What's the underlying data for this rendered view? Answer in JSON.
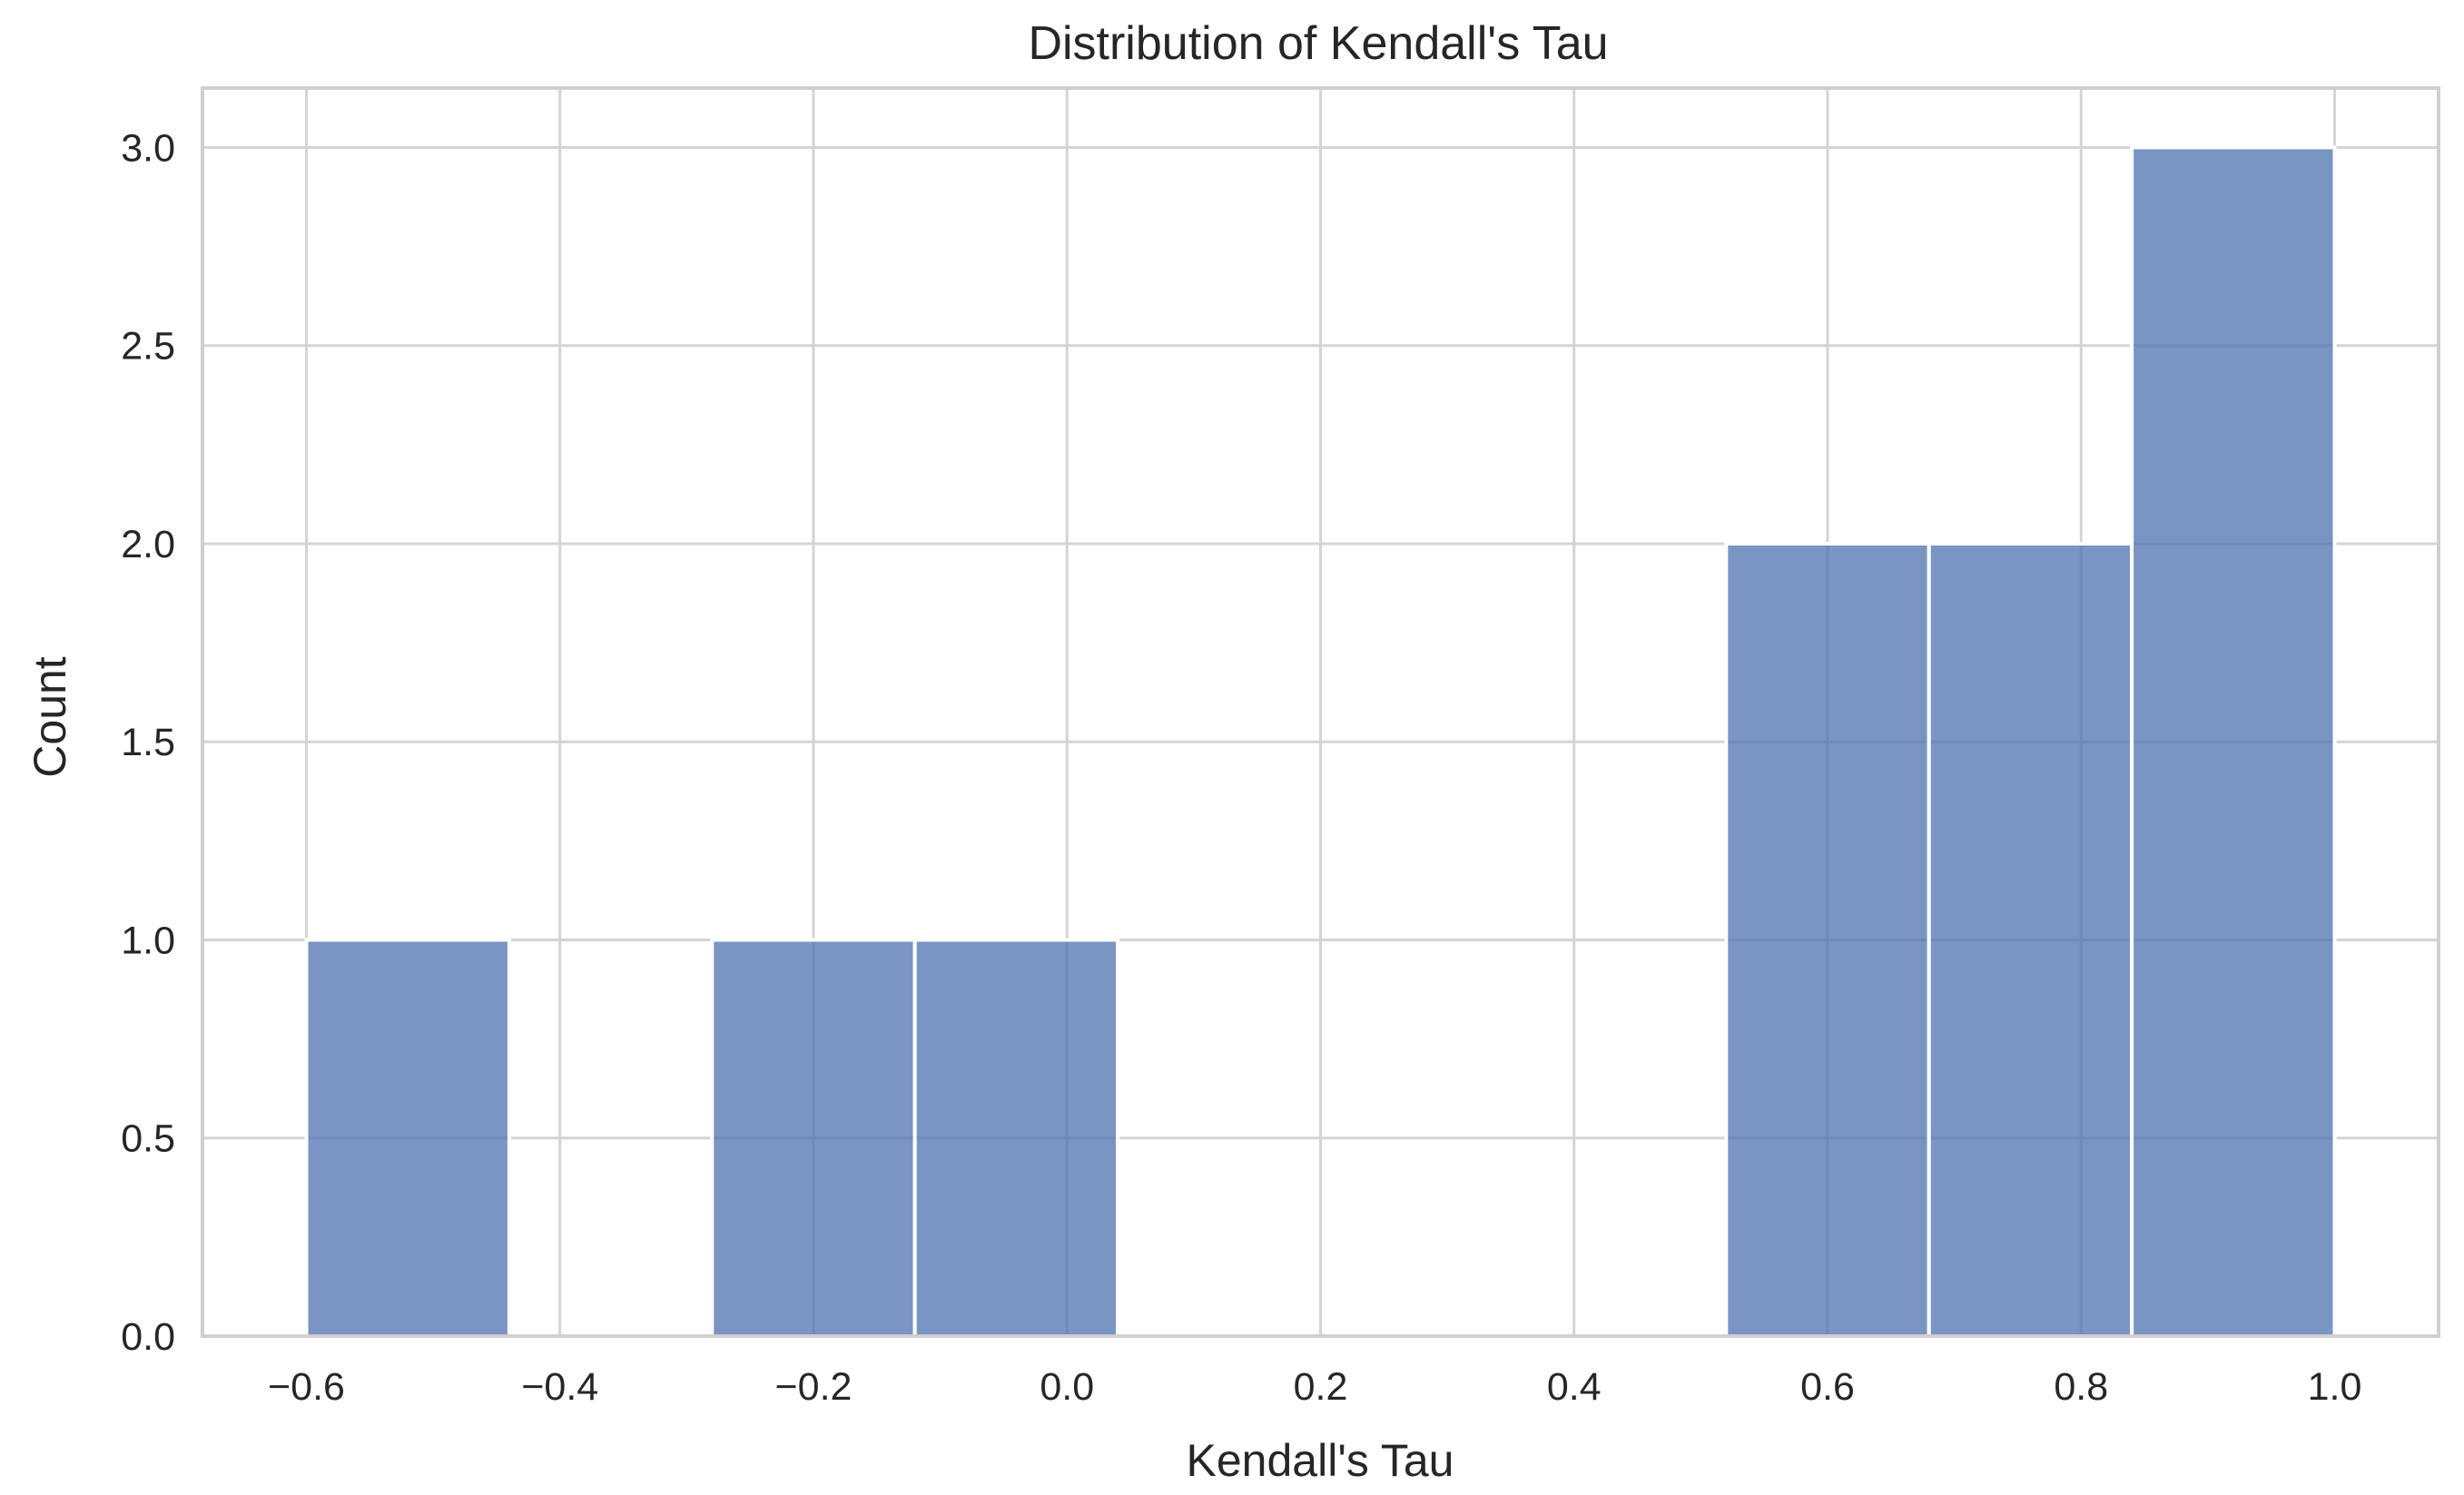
{
  "chart_data": {
    "type": "bar",
    "title": "Distribution of Kendall's Tau",
    "xlabel": "Kendall's Tau",
    "ylabel": "Count",
    "xlim": [
      -0.682,
      1.082
    ],
    "ylim": [
      0,
      3.15
    ],
    "xticks": [
      {
        "value": -0.6,
        "label": "−0.6"
      },
      {
        "value": -0.4,
        "label": "−0.4"
      },
      {
        "value": -0.2,
        "label": "−0.2"
      },
      {
        "value": 0.0,
        "label": "0.0"
      },
      {
        "value": 0.2,
        "label": "0.2"
      },
      {
        "value": 0.4,
        "label": "0.4"
      },
      {
        "value": 0.6,
        "label": "0.6"
      },
      {
        "value": 0.8,
        "label": "0.8"
      },
      {
        "value": 1.0,
        "label": "1.0"
      }
    ],
    "yticks": [
      {
        "value": 0.0,
        "label": "0.0"
      },
      {
        "value": 0.5,
        "label": "0.5"
      },
      {
        "value": 1.0,
        "label": "1.0"
      },
      {
        "value": 1.5,
        "label": "1.5"
      },
      {
        "value": 2.0,
        "label": "2.0"
      },
      {
        "value": 2.5,
        "label": "2.5"
      },
      {
        "value": 3.0,
        "label": "3.0"
      }
    ],
    "bins": [
      {
        "x0": -0.6,
        "x1": -0.44,
        "count": 1
      },
      {
        "x0": -0.44,
        "x1": -0.28,
        "count": 0
      },
      {
        "x0": -0.28,
        "x1": -0.12,
        "count": 1
      },
      {
        "x0": -0.12,
        "x1": 0.04,
        "count": 1
      },
      {
        "x0": 0.04,
        "x1": 0.2,
        "count": 0
      },
      {
        "x0": 0.2,
        "x1": 0.36,
        "count": 0
      },
      {
        "x0": 0.36,
        "x1": 0.52,
        "count": 0
      },
      {
        "x0": 0.52,
        "x1": 0.68,
        "count": 2
      },
      {
        "x0": 0.68,
        "x1": 0.84,
        "count": 2
      },
      {
        "x0": 0.84,
        "x1": 1.0,
        "count": 3
      }
    ],
    "bar_color": "#4c72b0",
    "grid": true,
    "legend": "none"
  }
}
